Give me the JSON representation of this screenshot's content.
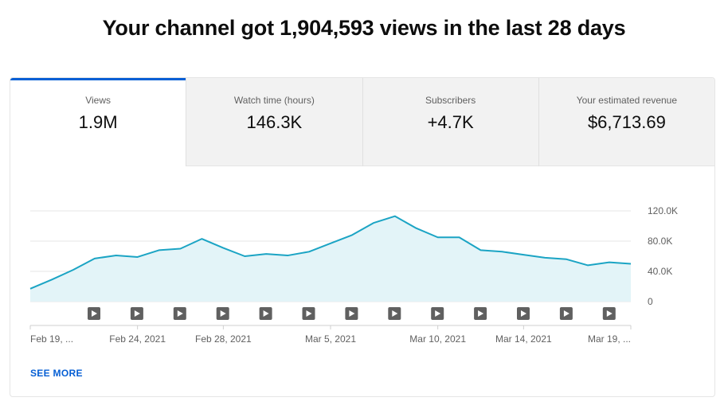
{
  "headline": "Your channel got 1,904,593 views in the last 28 days",
  "tabs": [
    {
      "label": "Views",
      "value": "1.9M",
      "active": true
    },
    {
      "label": "Watch time (hours)",
      "value": "146.3K",
      "active": false
    },
    {
      "label": "Subscribers",
      "value": "+4.7K",
      "active": false
    },
    {
      "label": "Your estimated revenue",
      "value": "$6,713.69",
      "active": false
    }
  ],
  "see_more": "SEE MORE",
  "chart_data": {
    "type": "area",
    "series": [
      {
        "values": [
          17000,
          29000,
          42000,
          57000,
          61000,
          59000,
          68000,
          70000,
          83000,
          71000,
          60000,
          63000,
          61000,
          66000,
          77000,
          88000,
          104000,
          113000,
          97000,
          85000,
          85000,
          68000,
          66000,
          62000,
          58000,
          56000,
          48000,
          52000,
          50000
        ]
      }
    ],
    "x_tick_labels": [
      "Feb 19, ...",
      "Feb 24, 2021",
      "Feb 28, 2021",
      "Mar 5, 2021",
      "Mar 10, 2021",
      "Mar 14, 2021",
      "Mar 19, ..."
    ],
    "y_tick_labels": [
      "0",
      "40.0K",
      "80.0K",
      "120.0K"
    ],
    "y_ticks": [
      0,
      40000,
      80000,
      120000
    ],
    "ylim": [
      0,
      120000
    ],
    "video_markers": 13,
    "colors": {
      "line": "#1ba4c4",
      "fill": "#e3f4f8",
      "grid": "#e5e5e5",
      "axis_text": "#606060",
      "marker": "#606060"
    }
  }
}
